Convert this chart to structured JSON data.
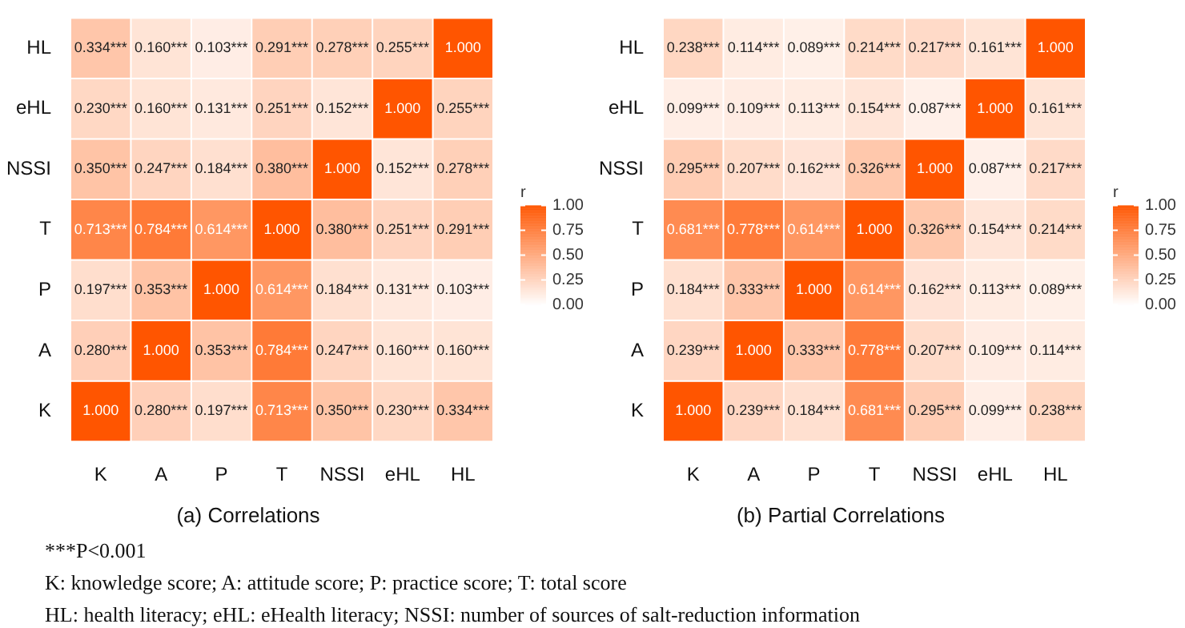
{
  "chart_data": [
    {
      "type": "heatmap",
      "title": "(a) Correlations",
      "clabel": "r",
      "color": "#ff5500",
      "clim": [
        0,
        1
      ],
      "cticks": [
        {
          "value": 0,
          "label": "0.00"
        },
        {
          "value": 0.25,
          "label": "0.25"
        },
        {
          "value": 0.5,
          "label": "0.50"
        },
        {
          "value": 0.75,
          "label": "0.75"
        },
        {
          "value": 1,
          "label": "1.00"
        }
      ],
      "categories": [
        "K",
        "A",
        "P",
        "T",
        "NSSI",
        "eHL",
        "HL"
      ],
      "y_categories": [
        "HL",
        "eHL",
        "NSSI",
        "T",
        "P",
        "A",
        "K"
      ],
      "cells": [
        [
          0.334,
          0.16,
          0.103,
          0.291,
          0.278,
          0.255,
          1.0
        ],
        [
          0.23,
          0.16,
          0.131,
          0.251,
          0.152,
          1.0,
          0.255
        ],
        [
          0.35,
          0.247,
          0.184,
          0.38,
          1.0,
          0.152,
          0.278
        ],
        [
          0.713,
          0.784,
          0.614,
          1.0,
          0.38,
          0.251,
          0.291
        ],
        [
          0.197,
          0.353,
          1.0,
          0.614,
          0.184,
          0.131,
          0.103
        ],
        [
          0.28,
          1.0,
          0.353,
          0.784,
          0.247,
          0.16,
          0.16
        ],
        [
          1.0,
          0.28,
          0.197,
          0.713,
          0.35,
          0.23,
          0.334
        ]
      ],
      "cell_labels": [
        [
          "0.334***",
          "0.160***",
          "0.103***",
          "0.291***",
          "0.278***",
          "0.255***",
          "1.000"
        ],
        [
          "0.230***",
          "0.160***",
          "0.131***",
          "0.251***",
          "0.152***",
          "1.000",
          "0.255***"
        ],
        [
          "0.350***",
          "0.247***",
          "0.184***",
          "0.380***",
          "1.000",
          "0.152***",
          "0.278***"
        ],
        [
          "0.713***",
          "0.784***",
          "0.614***",
          "1.000",
          "0.380***",
          "0.251***",
          "0.291***"
        ],
        [
          "0.197***",
          "0.353***",
          "1.000",
          "0.614***",
          "0.184***",
          "0.131***",
          "0.103***"
        ],
        [
          "0.280***",
          "1.000",
          "0.353***",
          "0.784***",
          "0.247***",
          "0.160***",
          "0.160***"
        ],
        [
          "1.000",
          "0.280***",
          "0.197***",
          "0.713***",
          "0.350***",
          "0.230***",
          "0.334***"
        ]
      ],
      "annotations": [
        "***P<0.001",
        "K: knowledge score;  A: attitude score;  P: practice score;  T: total score",
        "HL: health literacy; eHL: eHealth literacy; NSSI:  number of sources of salt-reduction information"
      ]
    },
    {
      "type": "heatmap",
      "title": "(b) Partial Correlations",
      "clabel": "r",
      "color": "#ff5500",
      "clim": [
        0,
        1
      ],
      "cticks": [
        {
          "value": 0,
          "label": "0.00"
        },
        {
          "value": 0.25,
          "label": "0.25"
        },
        {
          "value": 0.5,
          "label": "0.50"
        },
        {
          "value": 0.75,
          "label": "0.75"
        },
        {
          "value": 1,
          "label": "1.00"
        }
      ],
      "categories": [
        "K",
        "A",
        "P",
        "T",
        "NSSI",
        "eHL",
        "HL"
      ],
      "y_categories": [
        "HL",
        "eHL",
        "NSSI",
        "T",
        "P",
        "A",
        "K"
      ],
      "cells": [
        [
          0.238,
          0.114,
          0.089,
          0.214,
          0.217,
          0.161,
          1.0
        ],
        [
          0.099,
          0.109,
          0.113,
          0.154,
          0.087,
          1.0,
          0.161
        ],
        [
          0.295,
          0.207,
          0.162,
          0.326,
          1.0,
          0.087,
          0.217
        ],
        [
          0.681,
          0.778,
          0.614,
          1.0,
          0.326,
          0.154,
          0.214
        ],
        [
          0.184,
          0.333,
          1.0,
          0.614,
          0.162,
          0.113,
          0.089
        ],
        [
          0.239,
          1.0,
          0.333,
          0.778,
          0.207,
          0.109,
          0.114
        ],
        [
          1.0,
          0.239,
          0.184,
          0.681,
          0.295,
          0.099,
          0.238
        ]
      ],
      "cell_labels": [
        [
          "0.238***",
          "0.114***",
          "0.089***",
          "0.214***",
          "0.217***",
          "0.161***",
          "1.000"
        ],
        [
          "0.099***",
          "0.109***",
          "0.113***",
          "0.154***",
          "0.087***",
          "1.000",
          "0.161***"
        ],
        [
          "0.295***",
          "0.207***",
          "0.162***",
          "0.326***",
          "1.000",
          "0.087***",
          "0.217***"
        ],
        [
          "0.681***",
          "0.778***",
          "0.614***",
          "1.000",
          "0.326***",
          "0.154***",
          "0.214***"
        ],
        [
          "0.184***",
          "0.333***",
          "1.000",
          "0.614***",
          "0.162***",
          "0.113***",
          "0.089***"
        ],
        [
          "0.239***",
          "1.000",
          "0.333***",
          "0.778***",
          "0.207***",
          "0.109***",
          "0.114***"
        ],
        [
          "1.000",
          "0.239***",
          "0.184***",
          "0.681***",
          "0.295***",
          "0.099***",
          "0.238***"
        ]
      ]
    }
  ]
}
